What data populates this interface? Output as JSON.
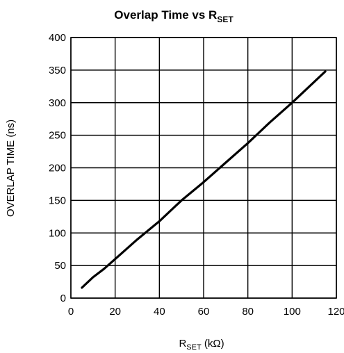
{
  "chart_data": {
    "type": "line",
    "title_main": "Overlap Time vs R",
    "title_sub": "SET",
    "xlabel_main": "R",
    "xlabel_sub": "SET",
    "xlabel_unit": " (kΩ)",
    "ylabel": "OVERLAP TIME (ns)",
    "xlim": [
      0,
      120
    ],
    "ylim": [
      0,
      400
    ],
    "xticks": [
      0,
      20,
      40,
      60,
      80,
      100,
      120
    ],
    "yticks": [
      0,
      50,
      100,
      150,
      200,
      250,
      300,
      350,
      400
    ],
    "grid": true,
    "series": [
      {
        "x": [
          5,
          10,
          15,
          20,
          30,
          40,
          50,
          60,
          70,
          80,
          90,
          100,
          115
        ],
        "y": [
          16,
          32,
          45,
          60,
          90,
          118,
          150,
          178,
          208,
          238,
          270,
          300,
          348
        ]
      }
    ]
  }
}
